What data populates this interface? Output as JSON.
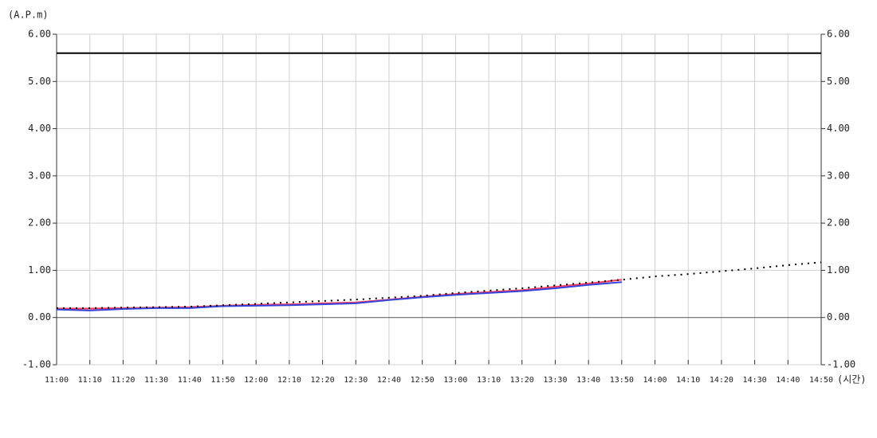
{
  "chart_data": {
    "type": "line",
    "y_label": "(A.P.m)",
    "x_label": "(시간)",
    "categories": [
      "11:00",
      "11:10",
      "11:20",
      "11:30",
      "11:40",
      "11:50",
      "12:00",
      "12:10",
      "12:20",
      "12:30",
      "12:40",
      "12:50",
      "13:00",
      "13:10",
      "13:20",
      "13:30",
      "13:40",
      "13:50",
      "14:00",
      "14:10",
      "14:20",
      "14:30",
      "14:40",
      "14:50"
    ],
    "series": [
      {
        "color": "#ff3b5c",
        "style": "solid",
        "values": [
          0.19,
          0.19,
          0.2,
          0.21,
          0.22,
          0.25,
          0.27,
          0.28,
          0.3,
          0.32,
          0.38,
          0.44,
          0.5,
          0.54,
          0.58,
          0.65,
          0.72,
          0.8,
          null,
          null,
          null,
          null,
          null,
          null
        ]
      },
      {
        "color": "#3344dd",
        "style": "solid",
        "values": [
          0.17,
          0.15,
          0.18,
          0.2,
          0.2,
          0.24,
          0.25,
          0.26,
          0.28,
          0.3,
          0.37,
          0.43,
          0.48,
          0.52,
          0.56,
          0.62,
          0.69,
          0.75,
          null,
          null,
          null,
          null,
          null,
          null
        ]
      },
      {
        "color": "#000000",
        "style": "dotted",
        "values": [
          0.2,
          0.2,
          0.21,
          0.22,
          0.23,
          0.26,
          0.29,
          0.32,
          0.35,
          0.38,
          0.42,
          0.46,
          0.52,
          0.57,
          0.62,
          0.68,
          0.74,
          0.8,
          0.87,
          0.92,
          0.98,
          1.04,
          1.11,
          1.17
        ]
      }
    ],
    "reference_line": {
      "value": 5.6,
      "color": "#000000"
    },
    "ylim": [
      -1,
      6
    ],
    "yticks": [
      {
        "value": -1,
        "label": "-1.00"
      },
      {
        "value": 0,
        "label": "0.00"
      },
      {
        "value": 1,
        "label": "1.00"
      },
      {
        "value": 2,
        "label": "2.00"
      },
      {
        "value": 3,
        "label": "3.00"
      },
      {
        "value": 4,
        "label": "4.00"
      },
      {
        "value": 5,
        "label": "5.00"
      },
      {
        "value": 6,
        "label": "6.00"
      }
    ],
    "grid": true
  }
}
